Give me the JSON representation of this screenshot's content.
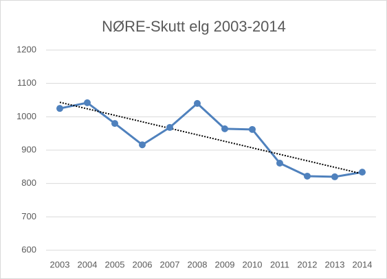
{
  "chart_data": {
    "type": "line",
    "title": "NØRE-Skutt elg 2003-2014",
    "categories": [
      "2003",
      "2004",
      "2005",
      "2006",
      "2007",
      "2008",
      "2009",
      "2010",
      "2011",
      "2012",
      "2013",
      "2014"
    ],
    "values": [
      1025,
      1042,
      980,
      916,
      968,
      1040,
      964,
      962,
      861,
      822,
      820,
      834
    ],
    "color": "#4f81bd",
    "ylim": [
      600,
      1200
    ],
    "yticks": [
      600,
      700,
      800,
      900,
      1000,
      1100,
      1200
    ],
    "grid": true,
    "markers": true,
    "trendline": {
      "kind": "linear",
      "color": "#000000",
      "style": "dotted"
    }
  }
}
